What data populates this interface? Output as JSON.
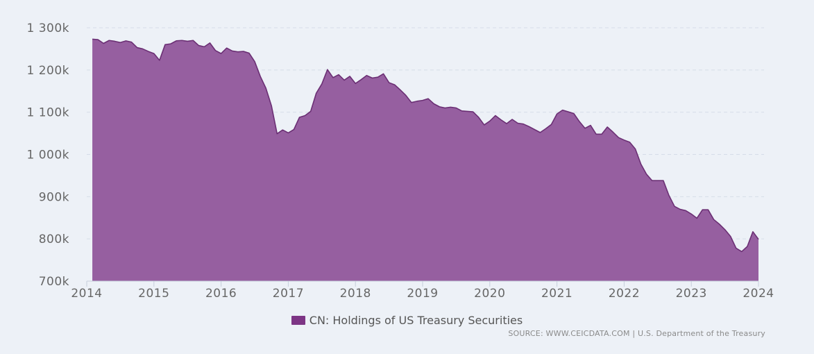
{
  "colors": {
    "fill": "#965fa0",
    "line": "#6b2f74",
    "swatch": "#7d3585",
    "grid": "#d6dde8",
    "axis": "#c6cfdb"
  },
  "chart_data": {
    "type": "area",
    "title": "",
    "xlabel": "",
    "ylabel": "",
    "ylim": [
      700000,
      1300000
    ],
    "xlim": [
      2014,
      2024
    ],
    "grid": true,
    "legend_position": "bottom-center",
    "y_ticks": [
      {
        "value": 1300000,
        "label": "1 300k"
      },
      {
        "value": 1200000,
        "label": "1 200k"
      },
      {
        "value": 1100000,
        "label": "1 100k"
      },
      {
        "value": 1000000,
        "label": "1 000k"
      },
      {
        "value": 900000,
        "label": "900k"
      },
      {
        "value": 800000,
        "label": "800k"
      },
      {
        "value": 700000,
        "label": "700k"
      }
    ],
    "x_ticks": [
      {
        "value": 2014,
        "label": "2014"
      },
      {
        "value": 2015,
        "label": "2015"
      },
      {
        "value": 2016,
        "label": "2016"
      },
      {
        "value": 2017,
        "label": "2017"
      },
      {
        "value": 2018,
        "label": "2018"
      },
      {
        "value": 2019,
        "label": "2019"
      },
      {
        "value": 2020,
        "label": "2020"
      },
      {
        "value": 2021,
        "label": "2021"
      },
      {
        "value": 2022,
        "label": "2022"
      },
      {
        "value": 2023,
        "label": "2023"
      },
      {
        "value": 2024,
        "label": "2024"
      }
    ],
    "series": [
      {
        "name": "CN: Holdings of US Treasury Securities",
        "x": [
          "2014-01",
          "2014-02",
          "2014-03",
          "2014-04",
          "2014-05",
          "2014-06",
          "2014-07",
          "2014-08",
          "2014-09",
          "2014-10",
          "2014-11",
          "2014-12",
          "2015-01",
          "2015-02",
          "2015-03",
          "2015-04",
          "2015-05",
          "2015-06",
          "2015-07",
          "2015-08",
          "2015-09",
          "2015-10",
          "2015-11",
          "2015-12",
          "2016-01",
          "2016-02",
          "2016-03",
          "2016-04",
          "2016-05",
          "2016-06",
          "2016-07",
          "2016-08",
          "2016-09",
          "2016-10",
          "2016-11",
          "2016-12",
          "2017-01",
          "2017-02",
          "2017-03",
          "2017-04",
          "2017-05",
          "2017-06",
          "2017-07",
          "2017-08",
          "2017-09",
          "2017-10",
          "2017-11",
          "2017-12",
          "2018-01",
          "2018-02",
          "2018-03",
          "2018-04",
          "2018-05",
          "2018-06",
          "2018-07",
          "2018-08",
          "2018-09",
          "2018-10",
          "2018-11",
          "2018-12",
          "2019-01",
          "2019-02",
          "2019-03",
          "2019-04",
          "2019-05",
          "2019-06",
          "2019-07",
          "2019-08",
          "2019-09",
          "2019-10",
          "2019-11",
          "2019-12",
          "2020-01",
          "2020-02",
          "2020-03",
          "2020-04",
          "2020-05",
          "2020-06",
          "2020-07",
          "2020-08",
          "2020-09",
          "2020-10",
          "2020-11",
          "2020-12",
          "2021-01",
          "2021-02",
          "2021-03",
          "2021-04",
          "2021-05",
          "2021-06",
          "2021-07",
          "2021-08",
          "2021-09",
          "2021-10",
          "2021-11",
          "2021-12",
          "2022-01",
          "2022-02",
          "2022-03",
          "2022-04",
          "2022-05",
          "2022-06",
          "2022-07",
          "2022-08",
          "2022-09",
          "2022-10",
          "2022-11",
          "2022-12",
          "2023-01",
          "2023-02",
          "2023-03",
          "2023-04",
          "2023-05",
          "2023-06",
          "2023-07",
          "2023-08",
          "2023-09",
          "2023-10",
          "2023-11",
          "2023-12"
        ],
        "values": [
          1273000,
          1272000,
          1263000,
          1270000,
          1268000,
          1265000,
          1269000,
          1266000,
          1253000,
          1250000,
          1244000,
          1239000,
          1223000,
          1260000,
          1262000,
          1269000,
          1270000,
          1268000,
          1270000,
          1258000,
          1255000,
          1264000,
          1246000,
          1239000,
          1252000,
          1245000,
          1243000,
          1244000,
          1240000,
          1220000,
          1185000,
          1157000,
          1115000,
          1049000,
          1058000,
          1051000,
          1059000,
          1088000,
          1092000,
          1102000,
          1145000,
          1167000,
          1201000,
          1182000,
          1189000,
          1176000,
          1185000,
          1168000,
          1177000,
          1187000,
          1181000,
          1183000,
          1191000,
          1170000,
          1165000,
          1153000,
          1140000,
          1123000,
          1126000,
          1128000,
          1132000,
          1120000,
          1113000,
          1110000,
          1112000,
          1110000,
          1103000,
          1102000,
          1101000,
          1088000,
          1070000,
          1079000,
          1092000,
          1082000,
          1073000,
          1083000,
          1074000,
          1072000,
          1066000,
          1059000,
          1052000,
          1061000,
          1071000,
          1096000,
          1105000,
          1101000,
          1097000,
          1078000,
          1062000,
          1069000,
          1048000,
          1048000,
          1065000,
          1053000,
          1040000,
          1034000,
          1029000,
          1013000,
          977000,
          953000,
          938000,
          938000,
          938000,
          903000,
          877000,
          870000,
          867000,
          859000,
          849000,
          869000,
          869000,
          846000,
          835000,
          822000,
          806000,
          778000,
          770000,
          782000,
          817000,
          799000
        ]
      }
    ]
  },
  "legend": {
    "label": "CN: Holdings of US Treasury Securities"
  },
  "source": {
    "text": "SOURCE: WWW.CEICDATA.COM | U.S. Department of the Treasury"
  }
}
